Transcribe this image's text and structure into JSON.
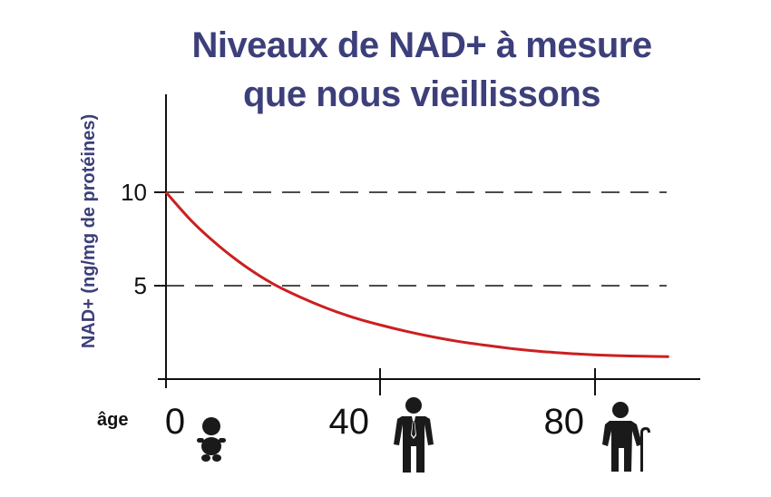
{
  "title_lines": [
    "Niveaux de NAD+ à mesure",
    "que nous vieillissons"
  ],
  "colors": {
    "title": "#3c3f7a",
    "curve": "#cc1f1f",
    "axis": "#111111",
    "icons": "#1a1a1a"
  },
  "icons": [
    "baby-icon",
    "businessman-icon",
    "elderly-person-with-cane-icon"
  ],
  "chart_data": {
    "type": "line",
    "title": "Niveaux de NAD+ à mesure que nous vieillissons",
    "ylabel": "NAD+ (ng/mg de protéines)",
    "xlabel": "âge",
    "x_ticks": [
      "0",
      "40",
      "80"
    ],
    "y_ticks": [
      "10",
      "5"
    ],
    "xlim": [
      0,
      100
    ],
    "ylim": [
      0,
      15
    ],
    "gridlines_y": [
      10,
      5
    ],
    "grid_style": "dashed",
    "series": [
      {
        "color": "#cc1f1f",
        "x": [
          0,
          5,
          10,
          15,
          20,
          25,
          30,
          35,
          40,
          45,
          50,
          55,
          60,
          65,
          70,
          75,
          80,
          85,
          90,
          94
        ],
        "y": [
          10.0,
          8.4,
          7.1,
          6.0,
          5.1,
          4.4,
          3.8,
          3.3,
          2.9,
          2.55,
          2.25,
          2.0,
          1.8,
          1.62,
          1.48,
          1.38,
          1.3,
          1.25,
          1.22,
          1.2
        ]
      }
    ]
  }
}
